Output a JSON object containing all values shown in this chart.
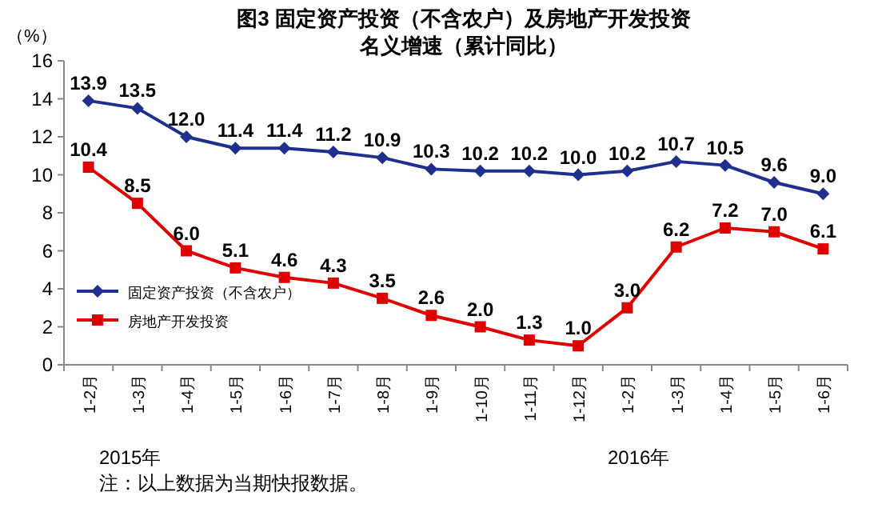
{
  "chart_data": {
    "type": "line",
    "title": "图3  固定资产投资（不含农户）及房地产开发投资",
    "subtitle": "名义增速（累计同比）",
    "ylabel": "（%）",
    "categories": [
      "1-2月",
      "1-3月",
      "1-4月",
      "1-5月",
      "1-6月",
      "1-7月",
      "1-8月",
      "1-9月",
      "1-10月",
      "1-11月",
      "1-12月",
      "1-2月",
      "1-3月",
      "1-4月",
      "1-5月",
      "1-6月"
    ],
    "series": [
      {
        "name": "固定资产投资（不含农户）",
        "color": "#1f2f8f",
        "marker": "diamond",
        "values": [
          13.9,
          13.5,
          12.0,
          11.4,
          11.4,
          11.2,
          10.9,
          10.3,
          10.2,
          10.2,
          10.0,
          10.2,
          10.7,
          10.5,
          9.6,
          9.0
        ],
        "value_labels": [
          "13.9",
          "13.5",
          "12.0",
          "11.4",
          "11.4",
          "11.2",
          "10.9",
          "10.3",
          "10.2",
          "10.2",
          "10.0",
          "10.2",
          "10.7",
          "10.5",
          "9.6",
          "9.0"
        ]
      },
      {
        "name": "房地产开发投资",
        "color": "#e00000",
        "marker": "square",
        "values": [
          10.4,
          8.5,
          6.0,
          5.1,
          4.6,
          4.3,
          3.5,
          2.6,
          2.0,
          1.3,
          1.0,
          3.0,
          6.2,
          7.2,
          7.0,
          6.1
        ],
        "value_labels": [
          "10.4",
          "8.5",
          "6.0",
          "5.1",
          "4.6",
          "4.3",
          "3.5",
          "2.6",
          "2.0",
          "1.3",
          "1.0",
          "3.0",
          "6.2",
          "7.2",
          "7.0",
          "6.1"
        ]
      }
    ],
    "ylim": [
      0,
      16
    ],
    "yticks": [
      0,
      2,
      4,
      6,
      8,
      10,
      12,
      14,
      16
    ],
    "grid": false,
    "legend": "bottom left",
    "annotations": [
      "2015年",
      "2016年",
      "注：以上数据为当期快报数据。"
    ]
  }
}
